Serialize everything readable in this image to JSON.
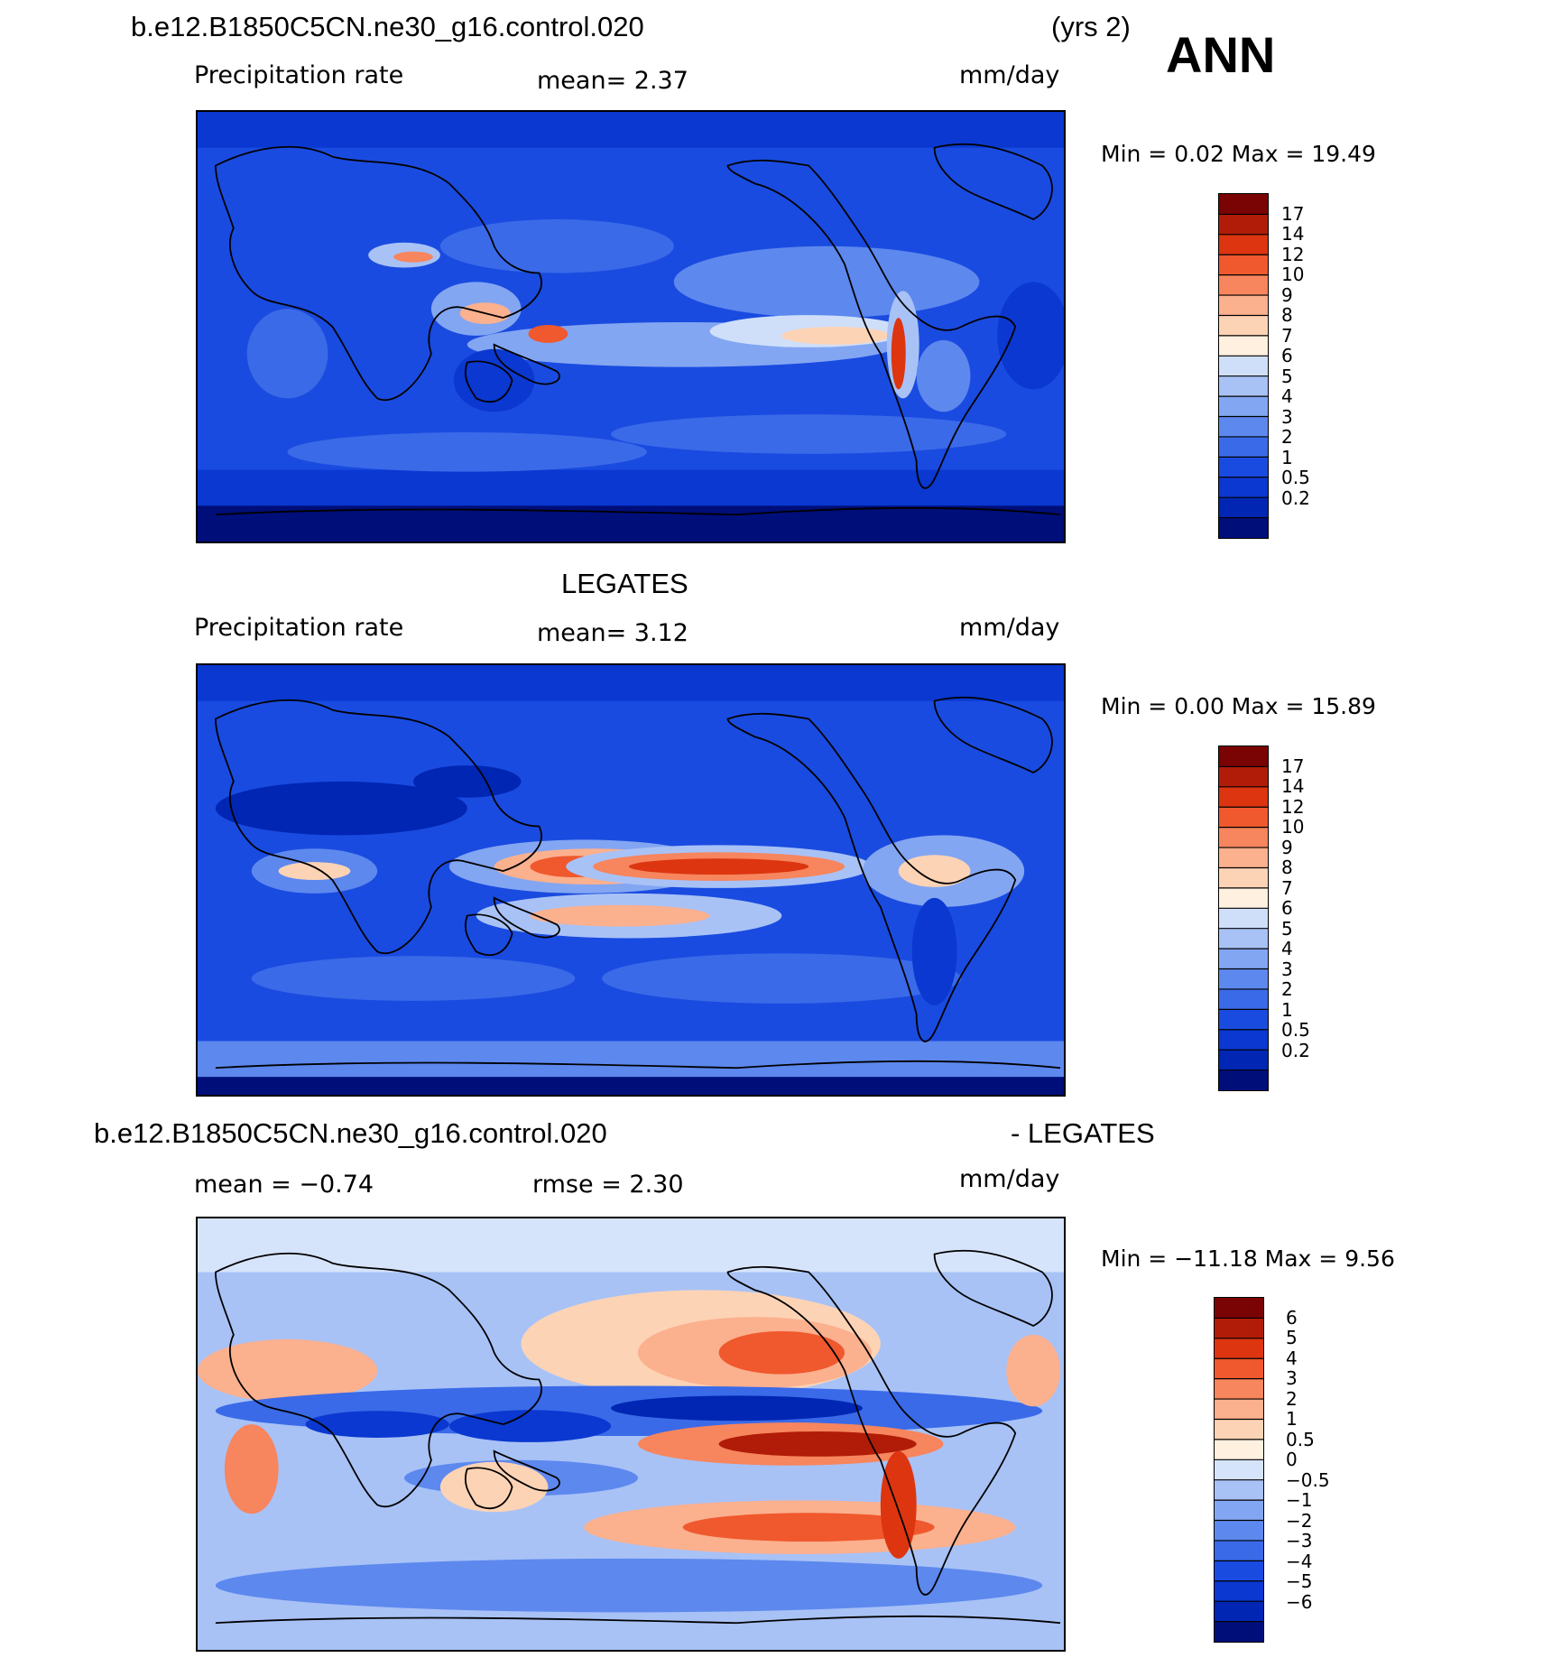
{
  "panels": [
    {
      "case": "b.e12.B1850C5CN.ne30_g16.control.020",
      "period": "(yrs 2)",
      "season": "ANN",
      "left": "Precipitation rate",
      "center": "mean=    2.37",
      "right": "mm/day",
      "minmax": "Min =    0.02  Max =   19.49",
      "colorbar": {
        "colors": [
          "#000e7a",
          "#0026b3",
          "#0a38d0",
          "#1a4be0",
          "#3a6ae8",
          "#5d88ee",
          "#83a6f2",
          "#a8c2f6",
          "#cfdffa",
          "#fff0e0",
          "#fdd3b5",
          "#fbb08e",
          "#f7855d",
          "#f0582d",
          "#dc3510",
          "#b01c07",
          "#7a0303"
        ],
        "labels": [
          "17",
          "14",
          "12",
          "10",
          "9",
          "8",
          "7",
          "6",
          "5",
          "4",
          "3",
          "2",
          "1",
          "0.5",
          "0.2"
        ]
      }
    },
    {
      "title": "LEGATES",
      "left": "Precipitation rate",
      "center": "mean=    3.12",
      "right": "mm/day",
      "minmax": "Min =    0.00  Max =   15.89",
      "colorbar": {
        "colors": [
          "#000e7a",
          "#0026b3",
          "#0a38d0",
          "#1a4be0",
          "#3a6ae8",
          "#5d88ee",
          "#83a6f2",
          "#a8c2f6",
          "#cfdffa",
          "#fff0e0",
          "#fdd3b5",
          "#fbb08e",
          "#f7855d",
          "#f0582d",
          "#dc3510",
          "#b01c07",
          "#7a0303"
        ],
        "labels": [
          "17",
          "14",
          "12",
          "10",
          "9",
          "8",
          "7",
          "6",
          "5",
          "4",
          "3",
          "2",
          "1",
          "0.5",
          "0.2"
        ]
      }
    },
    {
      "title_left": "b.e12.B1850C5CN.ne30_g16.control.020",
      "title_right": "- LEGATES",
      "left": "mean =   −0.74",
      "center": "rmse =    2.30",
      "right": "mm/day",
      "minmax": "Min = −11.18  Max =    9.56",
      "colorbar": {
        "colors": [
          "#000e7a",
          "#0026b3",
          "#0a38d0",
          "#1a4be0",
          "#3a6ae8",
          "#5d88ee",
          "#83a6f2",
          "#a8c2f6",
          "#d6e4fb",
          "#fff0e0",
          "#fdd3b5",
          "#fbb08e",
          "#f7855d",
          "#f0582d",
          "#dc3510",
          "#b01c07",
          "#7a0303"
        ],
        "labels": [
          "6",
          "5",
          "4",
          "3",
          "2",
          "1",
          "0.5",
          "0",
          "−0.5",
          "−1",
          "−2",
          "−3",
          "−4",
          "−5",
          "−6"
        ]
      }
    }
  ]
}
